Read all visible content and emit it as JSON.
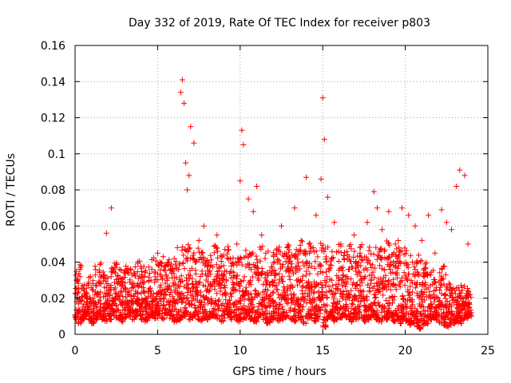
{
  "chart_data": {
    "type": "scatter",
    "title": "Day 332 of 2019, Rate Of TEC Index for receiver p803",
    "xlabel": "GPS time / hours",
    "ylabel": "ROTI / TECUs",
    "xlim": [
      0,
      25
    ],
    "ylim": [
      0,
      0.16
    ],
    "xticks": [
      "0",
      "5",
      "10",
      "15",
      "20",
      "25"
    ],
    "yticks": [
      "0",
      "0.02",
      "0.04",
      "0.06",
      "0.08",
      "0.1",
      "0.12",
      "0.14",
      "0.16"
    ],
    "grid": true,
    "marker": "+",
    "color": "#ff0000",
    "series": [
      {
        "name": "ROTI",
        "x": [
          0.1,
          0.3,
          0.5,
          0.8,
          1.2,
          1.5,
          1.9,
          2.2,
          2.6,
          3.0,
          3.4,
          3.8,
          4.2,
          4.6,
          5.0,
          5.4,
          5.8,
          6.2,
          6.4,
          6.5,
          6.6,
          6.7,
          6.8,
          6.9,
          7.0,
          7.2,
          7.5,
          7.8,
          8.2,
          8.6,
          9.0,
          9.4,
          9.8,
          10.0,
          10.1,
          10.2,
          10.5,
          10.8,
          11.0,
          11.3,
          11.7,
          12.1,
          12.5,
          12.9,
          13.3,
          13.7,
          14.0,
          14.2,
          14.6,
          14.9,
          15.0,
          15.1,
          15.3,
          15.7,
          16.1,
          16.5,
          16.9,
          17.3,
          17.7,
          18.1,
          18.3,
          18.6,
          19.0,
          19.4,
          19.8,
          20.2,
          20.6,
          21.0,
          21.4,
          21.8,
          22.2,
          22.5,
          22.8,
          23.1,
          23.3,
          23.6,
          23.8
        ],
        "y": [
          0.018,
          0.032,
          0.025,
          0.015,
          0.022,
          0.028,
          0.056,
          0.07,
          0.021,
          0.035,
          0.018,
          0.04,
          0.024,
          0.03,
          0.045,
          0.022,
          0.036,
          0.048,
          0.134,
          0.141,
          0.128,
          0.095,
          0.08,
          0.088,
          0.115,
          0.106,
          0.052,
          0.06,
          0.028,
          0.055,
          0.038,
          0.042,
          0.05,
          0.085,
          0.113,
          0.105,
          0.075,
          0.068,
          0.082,
          0.055,
          0.046,
          0.03,
          0.06,
          0.042,
          0.07,
          0.052,
          0.087,
          0.045,
          0.066,
          0.086,
          0.131,
          0.108,
          0.076,
          0.062,
          0.05,
          0.044,
          0.055,
          0.038,
          0.062,
          0.079,
          0.07,
          0.058,
          0.068,
          0.05,
          0.07,
          0.066,
          0.06,
          0.052,
          0.066,
          0.045,
          0.069,
          0.062,
          0.058,
          0.082,
          0.091,
          0.088,
          0.05
        ],
        "base": {
          "x": [
            0.0,
            0.2,
            0.4,
            0.6,
            0.8,
            1.0,
            1.2,
            1.4,
            1.6,
            1.8,
            2.0,
            2.2,
            2.4,
            2.6,
            2.8,
            3.0,
            3.2,
            3.4,
            3.6,
            3.8,
            4.0,
            4.2,
            4.4,
            4.6,
            4.8,
            5.0,
            5.2,
            5.4,
            5.6,
            5.8,
            6.0,
            6.2,
            6.4,
            6.6,
            6.8,
            7.0,
            7.2,
            7.4,
            7.6,
            7.8,
            8.0,
            8.2,
            8.4,
            8.6,
            8.8,
            9.0,
            9.2,
            9.4,
            9.6,
            9.8,
            10.0,
            10.2,
            10.4,
            10.6,
            10.8,
            11.0,
            11.2,
            11.4,
            11.6,
            11.8,
            12.0,
            12.2,
            12.4,
            12.6,
            12.8,
            13.0,
            13.2,
            13.4,
            13.6,
            13.8,
            14.0,
            14.2,
            14.4,
            14.6,
            14.8,
            15.0,
            15.2,
            15.4,
            15.6,
            15.8,
            16.0,
            16.2,
            16.4,
            16.6,
            16.8,
            17.0,
            17.2,
            17.4,
            17.6,
            17.8,
            18.0,
            18.2,
            18.4,
            18.6,
            18.8,
            19.0,
            19.2,
            19.4,
            19.6,
            19.8,
            20.0,
            20.2,
            20.4,
            20.6,
            20.8,
            21.0,
            21.2,
            21.4,
            21.6,
            21.8,
            22.0,
            22.2,
            22.4,
            22.6,
            22.8,
            23.0,
            23.2,
            23.4,
            23.6,
            23.8
          ],
          "low": [
            0.008,
            0.006,
            0.008,
            0.01,
            0.008,
            0.006,
            0.008,
            0.01,
            0.008,
            0.007,
            0.008,
            0.01,
            0.009,
            0.008,
            0.007,
            0.009,
            0.01,
            0.008,
            0.009,
            0.01,
            0.008,
            0.007,
            0.009,
            0.01,
            0.008,
            0.009,
            0.008,
            0.01,
            0.009,
            0.008,
            0.007,
            0.008,
            0.009,
            0.01,
            0.008,
            0.009,
            0.01,
            0.008,
            0.007,
            0.009,
            0.008,
            0.01,
            0.009,
            0.008,
            0.007,
            0.009,
            0.01,
            0.008,
            0.009,
            0.007,
            0.008,
            0.009,
            0.01,
            0.008,
            0.007,
            0.009,
            0.01,
            0.008,
            0.006,
            0.008,
            0.009,
            0.007,
            0.008,
            0.009,
            0.01,
            0.008,
            0.007,
            0.009,
            0.008,
            0.006,
            0.008,
            0.009,
            0.007,
            0.008,
            0.009,
            0.004,
            0.008,
            0.009,
            0.007,
            0.008,
            0.009,
            0.01,
            0.008,
            0.007,
            0.009,
            0.008,
            0.009,
            0.007,
            0.008,
            0.009,
            0.01,
            0.008,
            0.007,
            0.009,
            0.008,
            0.009,
            0.007,
            0.008,
            0.006,
            0.008,
            0.007,
            0.005,
            0.006,
            0.004,
            0.003,
            0.005,
            0.006,
            0.008,
            0.009,
            0.008,
            0.006,
            0.005,
            0.004,
            0.005,
            0.006,
            0.007,
            0.006,
            0.008,
            0.009,
            0.01
          ],
          "high": [
            0.035,
            0.042,
            0.03,
            0.028,
            0.032,
            0.034,
            0.038,
            0.04,
            0.036,
            0.034,
            0.032,
            0.038,
            0.04,
            0.036,
            0.035,
            0.04,
            0.038,
            0.035,
            0.04,
            0.042,
            0.038,
            0.036,
            0.04,
            0.044,
            0.042,
            0.04,
            0.046,
            0.044,
            0.042,
            0.04,
            0.044,
            0.046,
            0.05,
            0.052,
            0.05,
            0.048,
            0.046,
            0.05,
            0.048,
            0.044,
            0.046,
            0.048,
            0.05,
            0.046,
            0.044,
            0.048,
            0.05,
            0.046,
            0.042,
            0.044,
            0.046,
            0.048,
            0.05,
            0.046,
            0.044,
            0.048,
            0.05,
            0.046,
            0.044,
            0.04,
            0.046,
            0.05,
            0.048,
            0.046,
            0.05,
            0.048,
            0.046,
            0.05,
            0.052,
            0.048,
            0.05,
            0.052,
            0.05,
            0.048,
            0.052,
            0.054,
            0.05,
            0.048,
            0.046,
            0.05,
            0.052,
            0.048,
            0.046,
            0.05,
            0.048,
            0.046,
            0.05,
            0.048,
            0.046,
            0.05,
            0.052,
            0.05,
            0.048,
            0.052,
            0.054,
            0.05,
            0.048,
            0.052,
            0.05,
            0.048,
            0.05,
            0.046,
            0.044,
            0.042,
            0.044,
            0.04,
            0.042,
            0.038,
            0.036,
            0.03,
            0.036,
            0.04,
            0.034,
            0.03,
            0.028,
            0.026,
            0.03,
            0.028,
            0.026,
            0.024
          ]
        }
      }
    ]
  }
}
